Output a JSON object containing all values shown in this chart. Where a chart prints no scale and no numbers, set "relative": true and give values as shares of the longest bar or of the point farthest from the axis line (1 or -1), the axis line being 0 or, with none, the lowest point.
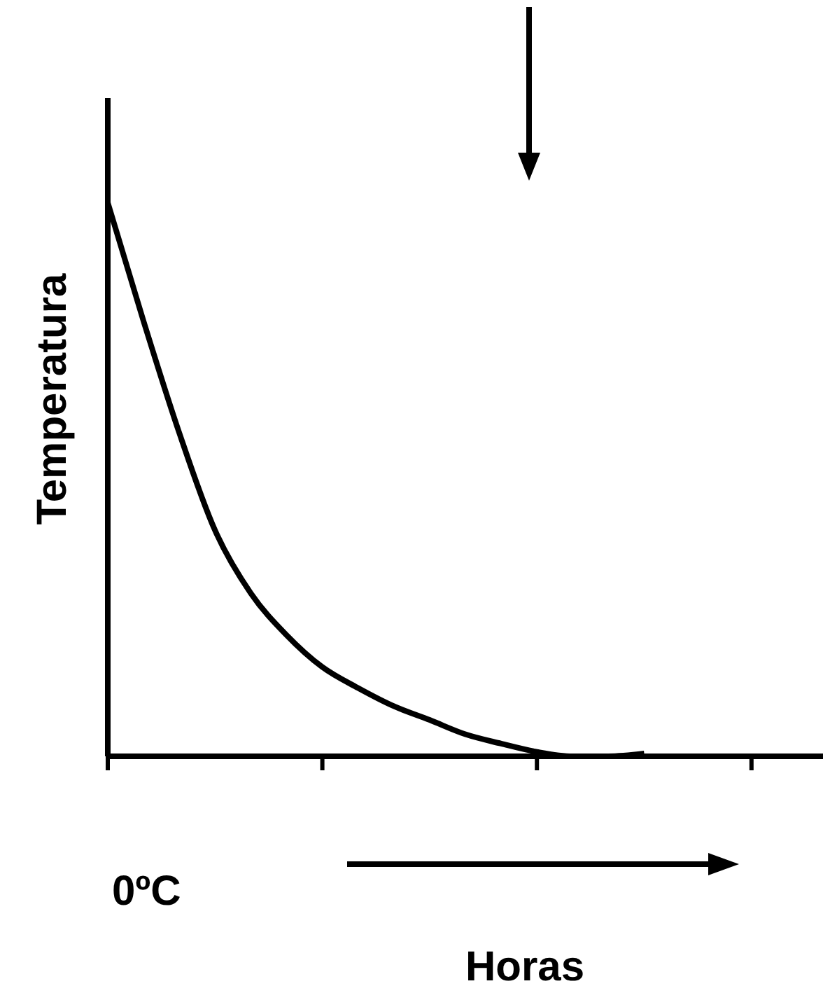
{
  "chart_data": {
    "type": "line",
    "relative": true,
    "xlabel": "Horas",
    "ylabel": "Temperatura",
    "annotations": [
      "0ºC"
    ],
    "categories": [
      null,
      null,
      null,
      null,
      null,
      null,
      null,
      null,
      null,
      null,
      null,
      null,
      null,
      null,
      null,
      null,
      null,
      null,
      null,
      null,
      null
    ],
    "series": [
      {
        "color": "#000000",
        "values": [
          1,
          0.785,
          0.582,
          0.405,
          0.291,
          0.215,
          0.157,
          0.119,
          0.086,
          0.061,
          0.035,
          0.018,
          0.003,
          -0.005,
          -0.005,
          0,
          null,
          null,
          null,
          null,
          null
        ]
      }
    ],
    "marker": "none",
    "line_style": "solid"
  }
}
